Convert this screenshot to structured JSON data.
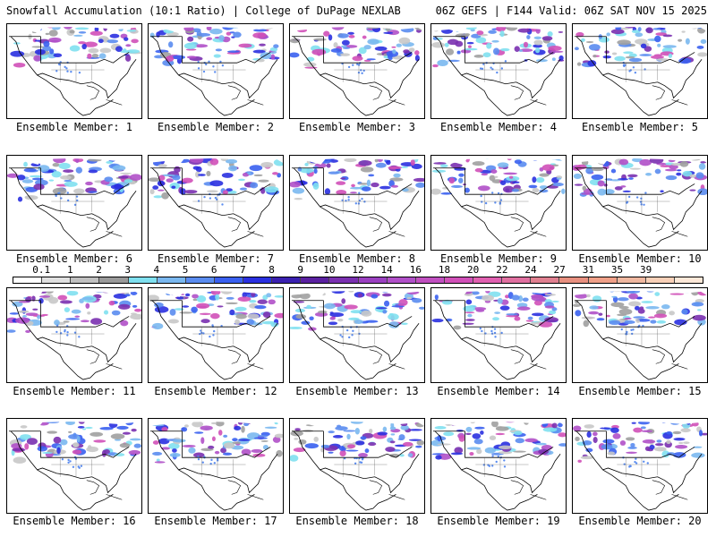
{
  "header": {
    "left_title": "Snowfall Accumulation (10:1 Ratio) | College of DuPage NEXLAB",
    "right_title": "06Z GEFS | F144 Valid: 06Z SAT NOV 15 2025"
  },
  "panels": [
    {
      "label": "Ensemble Member: 1"
    },
    {
      "label": "Ensemble Member: 2"
    },
    {
      "label": "Ensemble Member: 3"
    },
    {
      "label": "Ensemble Member: 4"
    },
    {
      "label": "Ensemble Member: 5"
    },
    {
      "label": "Ensemble Member: 6"
    },
    {
      "label": "Ensemble Member: 7"
    },
    {
      "label": "Ensemble Member: 8"
    },
    {
      "label": "Ensemble Member: 9"
    },
    {
      "label": "Ensemble Member: 10"
    },
    {
      "label": "Ensemble Member: 11"
    },
    {
      "label": "Ensemble Member: 12"
    },
    {
      "label": "Ensemble Member: 13"
    },
    {
      "label": "Ensemble Member: 14"
    },
    {
      "label": "Ensemble Member: 15"
    },
    {
      "label": "Ensemble Member: 16"
    },
    {
      "label": "Ensemble Member: 17"
    },
    {
      "label": "Ensemble Member: 18"
    },
    {
      "label": "Ensemble Member: 19"
    },
    {
      "label": "Ensemble Member: 20"
    }
  ],
  "colorbar": {
    "labels": [
      "0.1",
      "1",
      "2",
      "3",
      "4",
      "5",
      "6",
      "7",
      "8",
      "9",
      "10",
      "12",
      "14",
      "16",
      "18",
      "20",
      "22",
      "24",
      "27",
      "31",
      "35",
      "39"
    ],
    "colors": [
      "#ffffff",
      "#e0e0e0",
      "#c0c0c0",
      "#9a9a9a",
      "#7fe0f0",
      "#7ab8f0",
      "#5a8cf0",
      "#3a60f0",
      "#2a30e0",
      "#3a20b0",
      "#5a20a0",
      "#7a30b0",
      "#9a40c0",
      "#b050c8",
      "#c050c0",
      "#d050b8",
      "#e060b0",
      "#e070a0",
      "#e08090",
      "#e89080",
      "#f0a088",
      "#f0b8a0",
      "#f8d0b8",
      "#fde8d8"
    ]
  }
}
